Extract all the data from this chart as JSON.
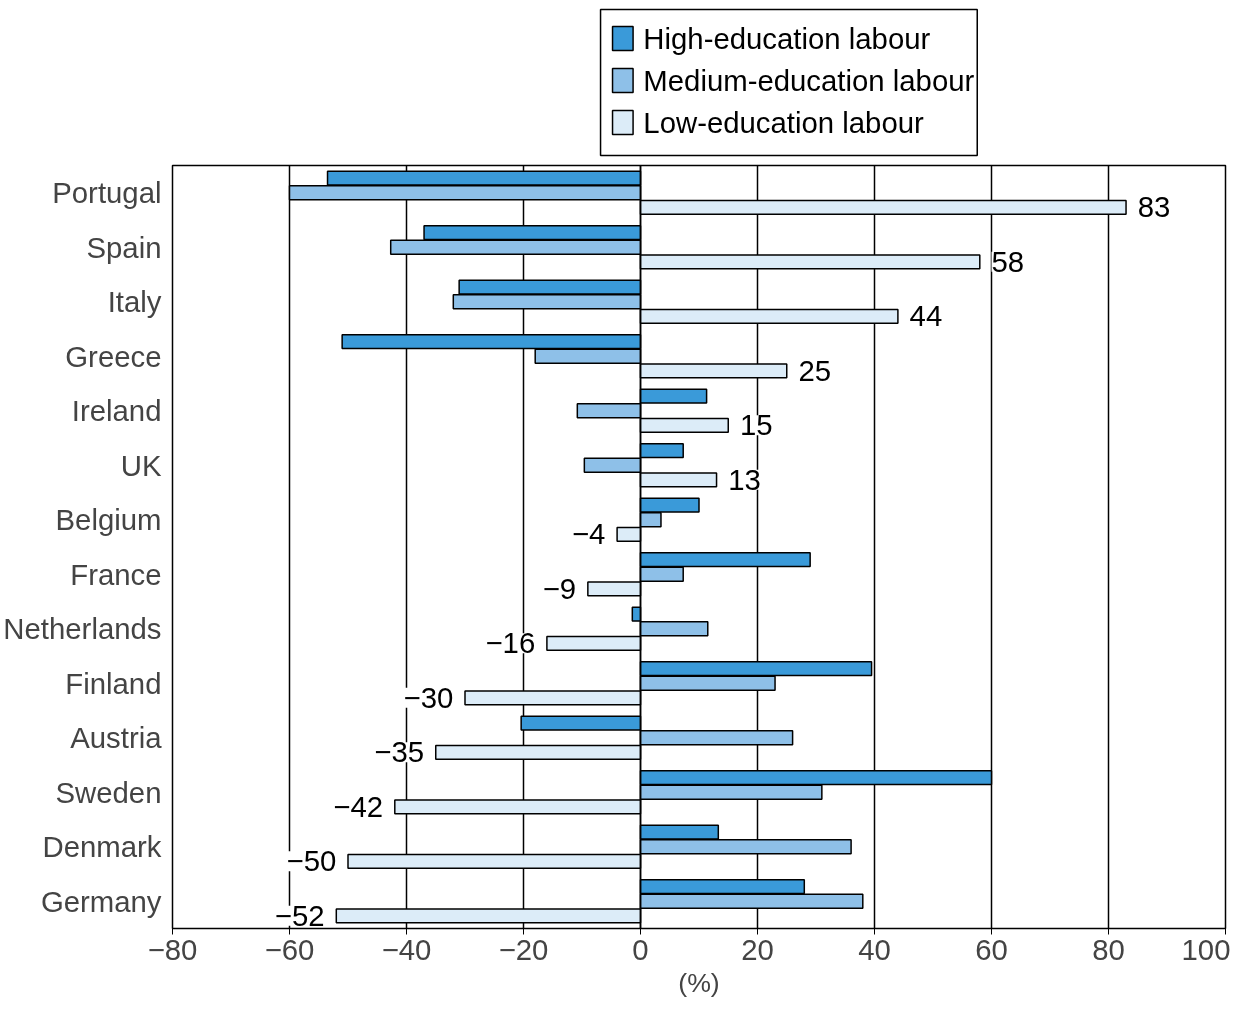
{
  "chart_data": {
    "type": "bar",
    "orientation": "horizontal",
    "xlabel": "(%)",
    "categories": [
      "Portugal",
      "Spain",
      "Italy",
      "Greece",
      "Ireland",
      "UK",
      "Belgium",
      "France",
      "Netherlands",
      "Finland",
      "Austria",
      "Sweden",
      "Denmark",
      "Germany"
    ],
    "series": [
      {
        "name": "High-education labour",
        "color": "#3a9ad9",
        "values": [
          -53.5,
          -37,
          -31,
          -51,
          11.3,
          7.3,
          10,
          29,
          -1.4,
          39.5,
          -20.4,
          60,
          13.3,
          28
        ]
      },
      {
        "name": "Medium-education labour",
        "color": "#8ec0e8",
        "values": [
          -60,
          -42.7,
          -32,
          -18,
          -10.8,
          -9.6,
          3.5,
          7.3,
          11.5,
          23,
          26,
          31,
          36,
          38
        ]
      },
      {
        "name": "Low-education labour",
        "color": "#dcecf8",
        "values": [
          83,
          58,
          44,
          25,
          15,
          13,
          -4,
          -9,
          -16,
          -30,
          -35,
          -42,
          -50,
          -52
        ],
        "value_labels": [
          "83",
          "58",
          "44",
          "25",
          "15",
          "13",
          "−4",
          "−9",
          "−16",
          "−30",
          "−35",
          "−42",
          "−50",
          "−52"
        ]
      }
    ],
    "xlim": [
      -80,
      100
    ],
    "xticks": [
      {
        "value": -80,
        "label": "−80"
      },
      {
        "value": -60,
        "label": "−60"
      },
      {
        "value": -40,
        "label": "−40"
      },
      {
        "value": -20,
        "label": "−20"
      },
      0,
      20,
      40,
      60,
      80,
      100
    ],
    "grid": "x",
    "legend": "top"
  }
}
